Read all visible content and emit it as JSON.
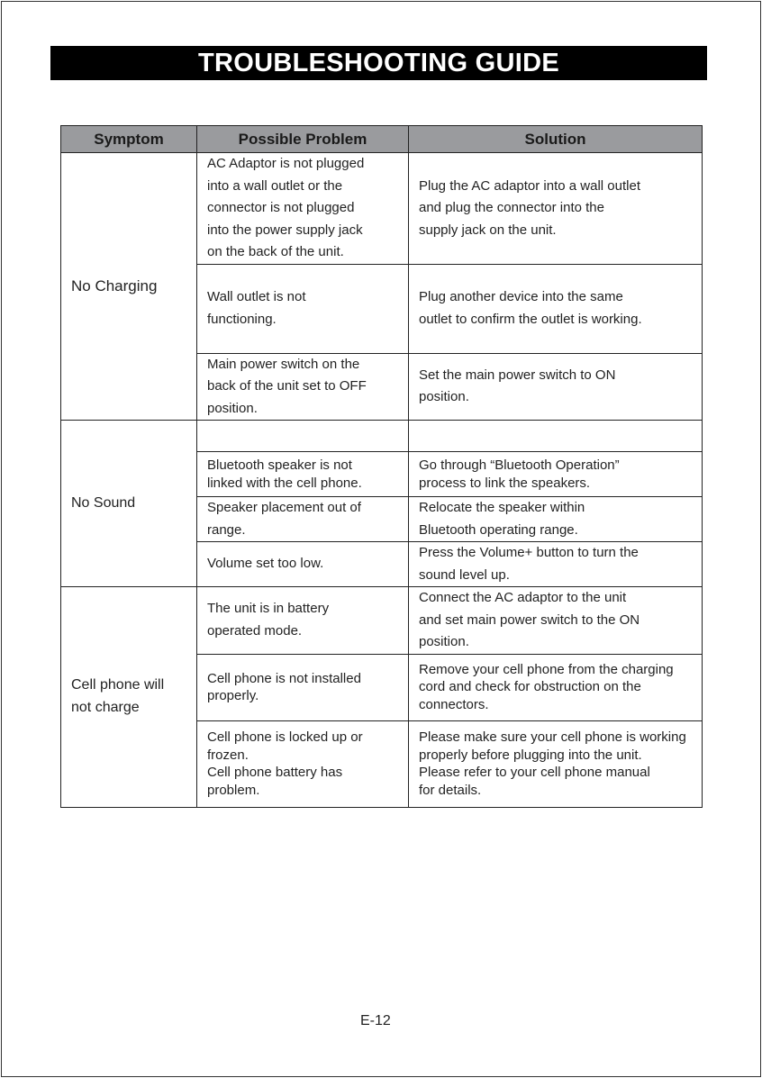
{
  "title": "TROUBLESHOOTING GUIDE",
  "table": {
    "headers": [
      "Symptom",
      "Possible Problem",
      "Solution"
    ],
    "groups": [
      {
        "symptom": "No Charging",
        "rows": [
          {
            "problem": "AC Adaptor is not plugged\ninto a wall outlet or the\nconnector is not plugged\ninto the power supply jack\non the back of the unit.",
            "solution": "Plug the AC adaptor into a wall outlet\nand plug the connector into the\nsupply jack on the unit."
          },
          {
            "problem": "Wall outlet is not\nfunctioning.",
            "solution": "Plug another device into the same\noutlet to confirm the outlet is working."
          },
          {
            "problem": "Main power switch on the\nback of the unit set to OFF\nposition.",
            "solution": "Set the main power switch to ON\nposition."
          }
        ]
      },
      {
        "symptom": "No Sound",
        "rows": [
          {
            "problem": "",
            "solution": ""
          },
          {
            "problem": "Bluetooth speaker is not\nlinked with the cell phone.",
            "solution": "Go through “Bluetooth Operation”\nprocess to link the speakers."
          },
          {
            "problem": "Speaker placement out of\nrange.",
            "solution": "Relocate the speaker within\nBluetooth operating range."
          },
          {
            "problem": "Volume set too low.",
            "solution": "Press the Volume+ button to turn the\nsound level up."
          }
        ]
      },
      {
        "symptom": "Cell phone will\nnot charge",
        "rows": [
          {
            "problem": "The unit is in battery\noperated mode.",
            "solution": "Connect the AC adaptor to the unit\nand set main power switch to the ON\nposition."
          },
          {
            "problem": "Cell phone is not installed\nproperly.",
            "solution": "Remove your cell phone from the charging\ncord and check for obstruction on the\nconnectors."
          },
          {
            "problem": "Cell phone is locked up or\nfrozen.\nCell phone battery has\nproblem.",
            "solution": "Please make sure your cell phone is working\nproperly before plugging into the unit.\nPlease refer to your cell phone manual\nfor details."
          }
        ]
      }
    ]
  },
  "page_number": "E-12"
}
